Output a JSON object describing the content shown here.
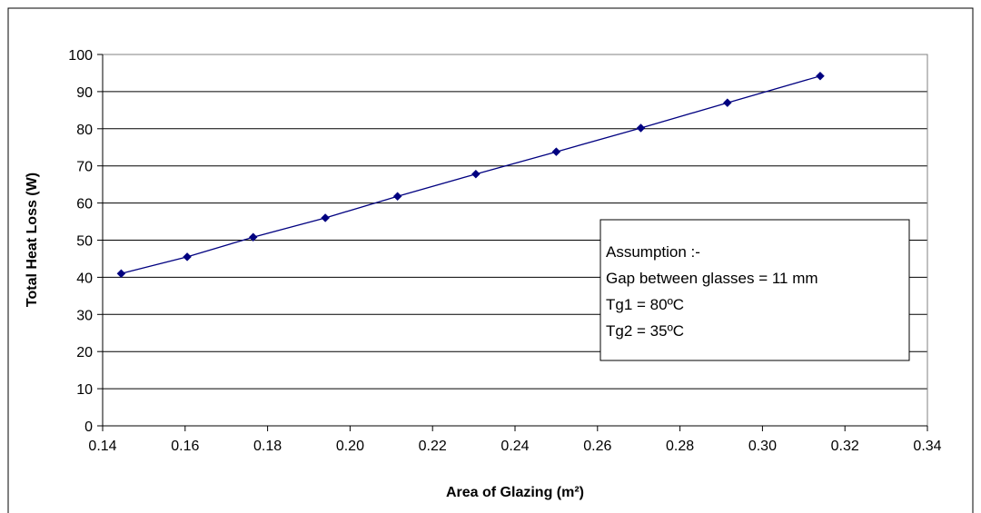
{
  "chart_data": {
    "type": "line",
    "title": "",
    "xlabel": "Area of Glazing (m²)",
    "ylabel": "Total Heat Loss (W)",
    "xlim": [
      0.14,
      0.34
    ],
    "ylim": [
      0,
      100
    ],
    "xticks": [
      "0.14",
      "0.16",
      "0.18",
      "0.20",
      "0.22",
      "0.24",
      "0.26",
      "0.28",
      "0.30",
      "0.32",
      "0.34"
    ],
    "yticks": [
      "0",
      "10",
      "20",
      "30",
      "40",
      "50",
      "60",
      "70",
      "80",
      "90",
      "100"
    ],
    "grid": "horizontal",
    "legend": "none",
    "series": [
      {
        "color": "#000080",
        "marker": "diamond",
        "x": [
          0.1445,
          0.1605,
          0.1765,
          0.194,
          0.2115,
          0.2305,
          0.25,
          0.2705,
          0.2915,
          0.314
        ],
        "y": [
          41.0,
          45.5,
          50.8,
          56.0,
          61.8,
          67.8,
          73.8,
          80.2,
          87.0,
          94.2
        ]
      }
    ],
    "annotation": {
      "placement": "right",
      "lines": [
        "Assumption :-",
        "Gap between glasses = 11 mm",
        "Tg1 = 80ºC",
        "Tg2 = 35ºC"
      ]
    }
  }
}
